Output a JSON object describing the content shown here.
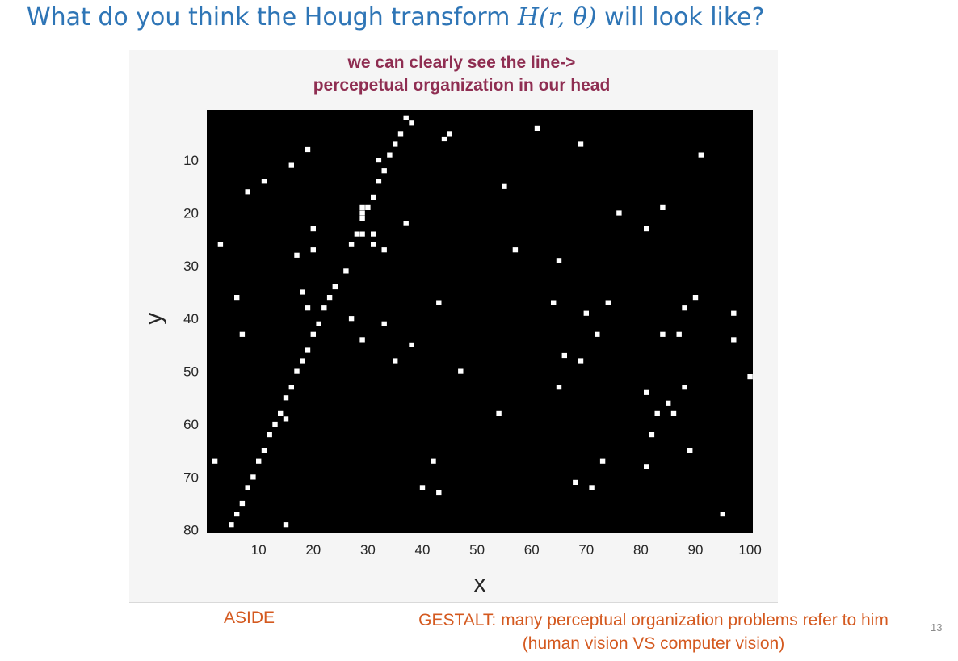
{
  "slide": {
    "title_prefix": "What do you think the Hough transform ",
    "title_math": "H(r, θ)",
    "title_suffix": " will look like?",
    "aside": "ASIDE",
    "note_line1": "GESTALT: many perceptual organization problems refer to him",
    "note_line2": "(human vision VS computer vision)",
    "page_number": "13"
  },
  "chart_data": {
    "type": "scatter",
    "title_line1": "we can clearly see the line->",
    "title_line2": "percepetual organization in our head",
    "xlabel": "x",
    "ylabel": "y",
    "xlim": [
      0.5,
      100.5
    ],
    "ylim": [
      0.5,
      80.5
    ],
    "y_reversed": true,
    "x_ticks": [
      10,
      20,
      30,
      40,
      50,
      60,
      70,
      80,
      90,
      100
    ],
    "y_ticks": [
      10,
      20,
      30,
      40,
      50,
      60,
      70,
      80
    ],
    "background_color": "#000000",
    "point_color": "#ffffff",
    "points": [
      [
        37,
        2
      ],
      [
        38,
        3
      ],
      [
        61,
        4
      ],
      [
        36,
        5
      ],
      [
        45,
        5
      ],
      [
        44,
        6
      ],
      [
        35,
        7
      ],
      [
        69,
        7
      ],
      [
        19,
        8
      ],
      [
        34,
        9
      ],
      [
        91,
        9
      ],
      [
        32,
        10
      ],
      [
        16,
        11
      ],
      [
        33,
        12
      ],
      [
        11,
        14
      ],
      [
        32,
        14
      ],
      [
        55,
        15
      ],
      [
        8,
        16
      ],
      [
        31,
        17
      ],
      [
        29,
        19
      ],
      [
        30,
        19
      ],
      [
        84,
        19
      ],
      [
        29,
        20
      ],
      [
        76,
        20
      ],
      [
        29,
        21
      ],
      [
        37,
        22
      ],
      [
        20,
        23
      ],
      [
        81,
        23
      ],
      [
        28,
        24
      ],
      [
        29,
        24
      ],
      [
        31,
        24
      ],
      [
        3,
        26
      ],
      [
        27,
        26
      ],
      [
        31,
        26
      ],
      [
        20,
        27
      ],
      [
        33,
        27
      ],
      [
        57,
        27
      ],
      [
        17,
        28
      ],
      [
        65,
        29
      ],
      [
        26,
        31
      ],
      [
        24,
        34
      ],
      [
        18,
        35
      ],
      [
        23,
        36
      ],
      [
        6,
        36
      ],
      [
        90,
        36
      ],
      [
        43,
        37
      ],
      [
        64,
        37
      ],
      [
        74,
        37
      ],
      [
        19,
        38
      ],
      [
        22,
        38
      ],
      [
        88,
        38
      ],
      [
        70,
        39
      ],
      [
        97,
        39
      ],
      [
        27,
        40
      ],
      [
        21,
        41
      ],
      [
        33,
        41
      ],
      [
        7,
        43
      ],
      [
        20,
        43
      ],
      [
        72,
        43
      ],
      [
        84,
        43
      ],
      [
        87,
        43
      ],
      [
        29,
        44
      ],
      [
        97,
        44
      ],
      [
        38,
        45
      ],
      [
        19,
        46
      ],
      [
        66,
        47
      ],
      [
        18,
        48
      ],
      [
        35,
        48
      ],
      [
        69,
        48
      ],
      [
        17,
        50
      ],
      [
        47,
        50
      ],
      [
        100,
        51
      ],
      [
        16,
        53
      ],
      [
        65,
        53
      ],
      [
        88,
        53
      ],
      [
        81,
        54
      ],
      [
        15,
        55
      ],
      [
        85,
        56
      ],
      [
        14,
        58
      ],
      [
        54,
        58
      ],
      [
        83,
        58
      ],
      [
        86,
        58
      ],
      [
        15,
        59
      ],
      [
        13,
        60
      ],
      [
        12,
        62
      ],
      [
        82,
        62
      ],
      [
        11,
        65
      ],
      [
        89,
        65
      ],
      [
        2,
        67
      ],
      [
        10,
        67
      ],
      [
        42,
        67
      ],
      [
        73,
        67
      ],
      [
        81,
        68
      ],
      [
        9,
        70
      ],
      [
        68,
        71
      ],
      [
        8,
        72
      ],
      [
        40,
        72
      ],
      [
        71,
        72
      ],
      [
        43,
        73
      ],
      [
        7,
        75
      ],
      [
        6,
        77
      ],
      [
        95,
        77
      ],
      [
        5,
        79
      ],
      [
        15,
        79
      ]
    ]
  }
}
